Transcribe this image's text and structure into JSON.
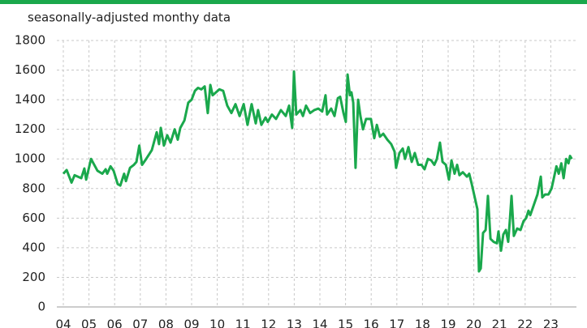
{
  "chart_data": {
    "type": "line",
    "subtitle": "seasonally-adjusted monthy data",
    "color": "#1aa84c",
    "grid": true,
    "xlim": [
      2004,
      2024
    ],
    "ylim": [
      0,
      1800
    ],
    "yticks": [
      0,
      200,
      400,
      600,
      800,
      1000,
      1200,
      1400,
      1600,
      1800
    ],
    "xticks": [
      {
        "value": 2004,
        "label": "04"
      },
      {
        "value": 2005,
        "label": "05"
      },
      {
        "value": 2006,
        "label": "06"
      },
      {
        "value": 2007,
        "label": "07"
      },
      {
        "value": 2008,
        "label": "08"
      },
      {
        "value": 2009,
        "label": "09"
      },
      {
        "value": 2010,
        "label": "10"
      },
      {
        "value": 2011,
        "label": "11"
      },
      {
        "value": 2012,
        "label": "12"
      },
      {
        "value": 2013,
        "label": "13"
      },
      {
        "value": 2014,
        "label": "14"
      },
      {
        "value": 2015,
        "label": "15"
      },
      {
        "value": 2016,
        "label": "16"
      },
      {
        "value": 2017,
        "label": "17"
      },
      {
        "value": 2018,
        "label": "18"
      },
      {
        "value": 2019,
        "label": "19"
      },
      {
        "value": 2020,
        "label": "20"
      },
      {
        "value": 2021,
        "label": "21"
      },
      {
        "value": 2022,
        "label": "22"
      },
      {
        "value": 2023,
        "label": "23"
      }
    ],
    "x": [
      2004.0,
      2004.13,
      2004.32,
      2004.44,
      2004.7,
      2004.82,
      2004.89,
      2005.08,
      2005.33,
      2005.52,
      2005.65,
      2005.71,
      2005.84,
      2005.96,
      2006.12,
      2006.22,
      2006.37,
      2006.44,
      2006.6,
      2006.75,
      2006.85,
      2006.96,
      2007.07,
      2007.23,
      2007.45,
      2007.64,
      2007.73,
      2007.8,
      2007.92,
      2008.05,
      2008.18,
      2008.34,
      2008.46,
      2008.56,
      2008.72,
      2008.87,
      2009.0,
      2009.13,
      2009.25,
      2009.38,
      2009.51,
      2009.63,
      2009.73,
      2009.82,
      2009.95,
      2010.08,
      2010.23,
      2010.39,
      2010.55,
      2010.71,
      2010.87,
      2011.03,
      2011.18,
      2011.34,
      2011.5,
      2011.59,
      2011.72,
      2011.88,
      2011.97,
      2012.13,
      2012.29,
      2012.48,
      2012.67,
      2012.8,
      2012.92,
      2012.99,
      2013.08,
      2013.24,
      2013.34,
      2013.46,
      2013.62,
      2013.78,
      2013.94,
      2014.09,
      2014.22,
      2014.28,
      2014.44,
      2014.57,
      2014.7,
      2014.79,
      2014.92,
      2015.01,
      2015.08,
      2015.17,
      2015.23,
      2015.3,
      2015.39,
      2015.49,
      2015.58,
      2015.68,
      2015.8,
      2015.99,
      2016.12,
      2016.22,
      2016.34,
      2016.47,
      2016.63,
      2016.78,
      2016.91,
      2016.97,
      2017.1,
      2017.23,
      2017.32,
      2017.45,
      2017.58,
      2017.7,
      2017.83,
      2017.96,
      2018.08,
      2018.21,
      2018.34,
      2018.46,
      2018.56,
      2018.68,
      2018.78,
      2018.91,
      2019.03,
      2019.13,
      2019.25,
      2019.35,
      2019.44,
      2019.57,
      2019.73,
      2019.82,
      2019.92,
      2020.01,
      2020.14,
      2020.2,
      2020.27,
      2020.36,
      2020.46,
      2020.55,
      2020.65,
      2020.77,
      2020.9,
      2020.96,
      2021.06,
      2021.15,
      2021.25,
      2021.34,
      2021.41,
      2021.47,
      2021.56,
      2021.69,
      2021.82,
      2021.94,
      2022.04,
      2022.13,
      2022.2,
      2022.32,
      2022.48,
      2022.61,
      2022.67,
      2022.78,
      2022.91,
      2023.03,
      2023.12,
      2023.22,
      2023.31,
      2023.41,
      2023.5,
      2023.6,
      2023.69,
      2023.75,
      2023.82
    ],
    "values": [
      900,
      925,
      840,
      890,
      870,
      935,
      860,
      1000,
      920,
      900,
      930,
      900,
      950,
      920,
      830,
      820,
      900,
      850,
      940,
      960,
      980,
      1090,
      960,
      1000,
      1060,
      1180,
      1100,
      1210,
      1090,
      1160,
      1110,
      1200,
      1130,
      1210,
      1260,
      1380,
      1400,
      1460,
      1480,
      1470,
      1490,
      1310,
      1500,
      1430,
      1450,
      1470,
      1460,
      1360,
      1310,
      1370,
      1290,
      1370,
      1230,
      1370,
      1240,
      1330,
      1230,
      1280,
      1250,
      1300,
      1270,
      1330,
      1290,
      1360,
      1210,
      1590,
      1300,
      1330,
      1290,
      1360,
      1310,
      1330,
      1340,
      1320,
      1430,
      1300,
      1340,
      1290,
      1410,
      1420,
      1310,
      1250,
      1570,
      1430,
      1450,
      1380,
      940,
      1400,
      1290,
      1200,
      1270,
      1270,
      1140,
      1230,
      1150,
      1170,
      1130,
      1100,
      1050,
      940,
      1040,
      1070,
      1000,
      1080,
      980,
      1040,
      960,
      960,
      930,
      1000,
      990,
      960,
      1000,
      1110,
      980,
      960,
      860,
      990,
      900,
      960,
      890,
      910,
      880,
      900,
      830,
      760,
      660,
      240,
      260,
      500,
      520,
      750,
      460,
      440,
      430,
      510,
      380,
      490,
      520,
      440,
      600,
      750,
      480,
      530,
      520,
      580,
      600,
      650,
      620,
      680,
      760,
      880,
      740,
      760,
      760,
      800,
      870,
      950,
      900,
      970,
      870,
      1000,
      970,
      1020,
      1000
    ]
  }
}
